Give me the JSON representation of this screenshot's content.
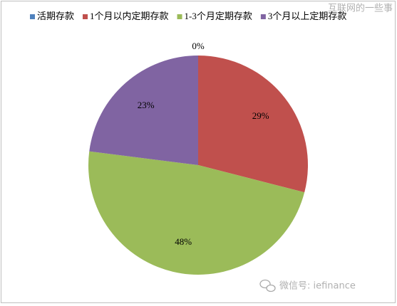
{
  "chart_data": {
    "type": "pie",
    "categories": [
      "活期存款",
      "1个月以内定期存款",
      "1-3个月定期存款",
      "3个月以上定期存款"
    ],
    "values": [
      0,
      29,
      48,
      23
    ],
    "value_labels": [
      "0%",
      "29%",
      "48%",
      "23%"
    ],
    "colors": [
      "#4f81bd",
      "#c0504d",
      "#9bbb59",
      "#8064a2"
    ],
    "legend": "top"
  },
  "watermarks": [
    "互联网的一些事",
    "微信号: iefinance"
  ]
}
